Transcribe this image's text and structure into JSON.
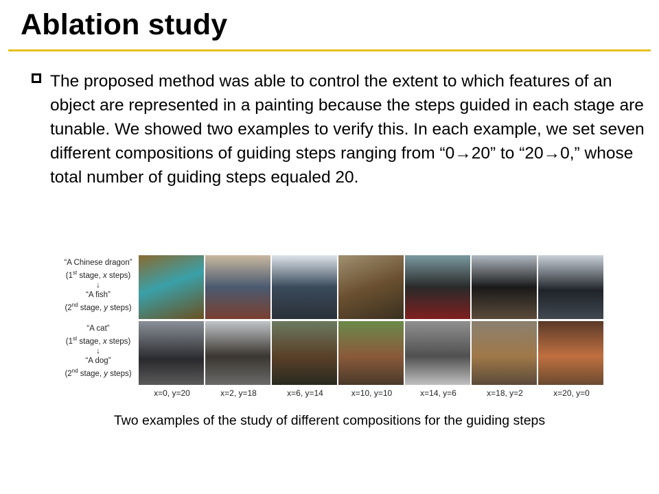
{
  "slide": {
    "title": "Ablation study",
    "accent_color": "#e6c020",
    "bullet_icon": "hollow-square",
    "bullet_text": "The proposed method was able to control the extent to which features of an object are represented in a painting because the steps guided in each stage are tunable. We showed two examples to verify this. In each example, we set seven different compositions of guiding steps ranging from “0→20” to “20→0,” whose total number of guiding steps equaled 20.",
    "figure": {
      "rows": [
        {
          "first_prompt": "“A Chinese dragon”",
          "first_stage": "(1st stage, x steps)",
          "arrow": "↓",
          "second_prompt": "“A fish”",
          "second_stage": "(2nd stage, y steps)"
        },
        {
          "first_prompt": "“A cat”",
          "first_stage": "(1st stage, x steps)",
          "arrow": "↓",
          "second_prompt": "“A dog”",
          "second_stage": "(2nd stage, y steps)"
        }
      ],
      "columns": [
        "x=0, y=20",
        "x=2, y=18",
        "x=6, y=14",
        "x=10, y=10",
        "x=14, y=6",
        "x=18, y=2",
        "x=20, y=0"
      ]
    },
    "caption": "Two examples of the study of different compositions for the guiding steps"
  }
}
